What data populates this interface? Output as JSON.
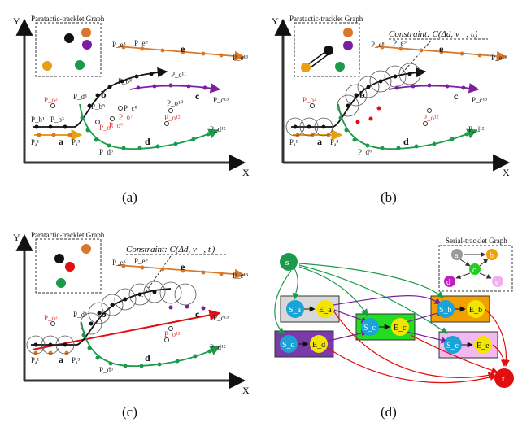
{
  "panels": {
    "a": {
      "caption": "(a)",
      "graph_title": "Paratactic-tracklet Graph",
      "axis_y": "Y",
      "axis_x": "X",
      "labels": {
        "pa1": "Pₐ¹",
        "pa3": "Pₐ³",
        "pb1": "P_b¹",
        "pb3": "P_b³",
        "pb5": "P_b⁵",
        "pb8": "P_b⁸",
        "pc8": "P_c⁸",
        "pc11": "P_c¹¹",
        "pc13": "P_c¹³",
        "pd3": "P_d³",
        "pd6": "P_d⁶",
        "pd12": "P_d¹²",
        "pe8": "P_e⁸",
        "pe9": "P_e⁹",
        "pe13": "P_e¹³",
        "po2": "P_o²",
        "po5": "P_o⁵",
        "po6": "P_o⁶",
        "po7": "P_o⁷",
        "po10": "P_o¹⁰",
        "po11": "P_o¹¹",
        "po12": "P_o¹²"
      }
    },
    "b": {
      "caption": "(b)",
      "graph_title": "Paratactic-tracklet Graph",
      "constraint": "Constraint: C(Δd, v⃗, tᵢ)",
      "axis_y": "Y",
      "axis_x": "X"
    },
    "c": {
      "caption": "(c)",
      "graph_title": "Paratactic-tracklet Graph",
      "constraint": "Constraint: C(Δd, v⃗, tᵢ)",
      "axis_y": "Y",
      "axis_x": "X"
    },
    "d": {
      "caption": "(d)",
      "graph_title": "Serial-tracklet Graph",
      "source": "s",
      "sink": "t",
      "nodes": [
        "S_a",
        "E_a",
        "S_b",
        "E_b",
        "S_c",
        "E_c",
        "S_d",
        "E_d",
        "S_e",
        "E_e"
      ],
      "mini_nodes": [
        "a",
        "b",
        "c",
        "d",
        "e"
      ]
    }
  },
  "segments": [
    "a",
    "b",
    "c",
    "d",
    "e"
  ],
  "colors": {
    "a": "#e8a010",
    "b": "#111111",
    "c": "#7a1fa0",
    "d": "#1a9a4a",
    "e": "#d8782a",
    "red": "#e01010",
    "cyan": "#1aa3d8",
    "yellow": "#f2e600"
  }
}
